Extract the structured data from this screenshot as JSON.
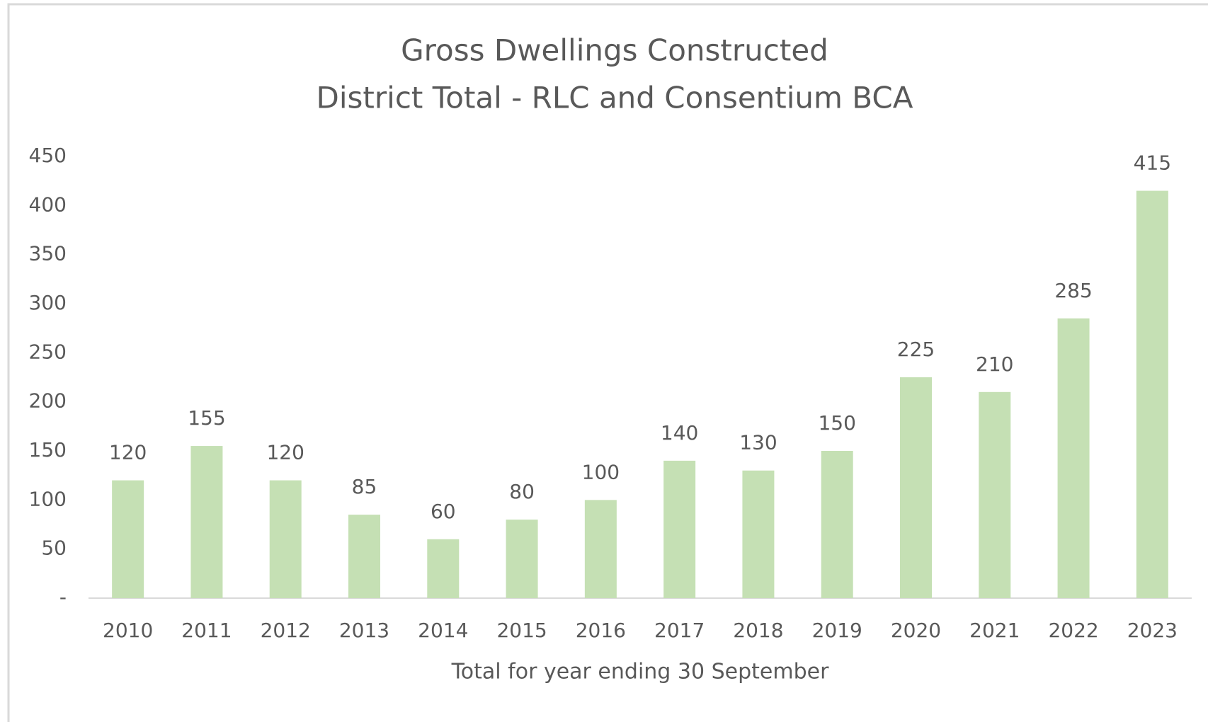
{
  "chart_data": {
    "type": "bar",
    "title": "Gross Dwellings Constructed",
    "subtitle": "District Total - RLC and Consentium BCA",
    "x_label": "Total for year ending 30 September",
    "categories": [
      "2010",
      "2011",
      "2012",
      "2013",
      "2014",
      "2015",
      "2016",
      "2017",
      "2018",
      "2019",
      "2020",
      "2021",
      "2022",
      "2023"
    ],
    "values": [
      120,
      155,
      120,
      85,
      60,
      80,
      100,
      140,
      130,
      150,
      225,
      210,
      285,
      415
    ],
    "color": "#c5e0b4",
    "ylim": [
      0,
      450
    ],
    "yticks": [
      {
        "value": 0,
        "label": "-"
      },
      50,
      100,
      150,
      200,
      250,
      300,
      350,
      400,
      450
    ],
    "grid": false
  }
}
